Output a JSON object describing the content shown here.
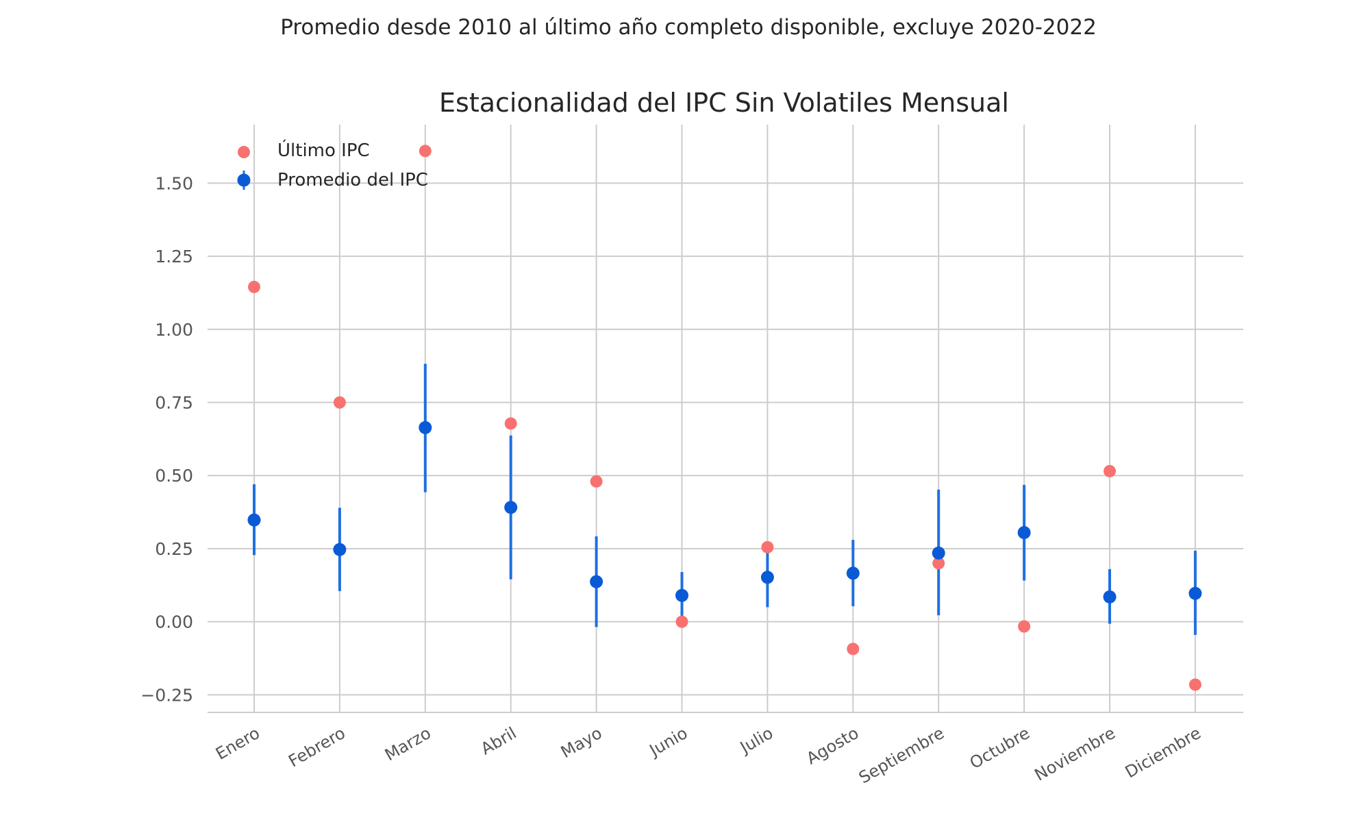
{
  "chart_data": {
    "type": "scatter",
    "suptitle": "Promedio desde 2010 al último año completo disponible, excluye 2020-2022",
    "title": "Estacionalidad del IPC Sin Volatiles Mensual",
    "xlabel": "",
    "ylabel": "",
    "categories": [
      "Enero",
      "Febrero",
      "Marzo",
      "Abril",
      "Mayo",
      "Junio",
      "Julio",
      "Agosto",
      "Septiembre",
      "Octubre",
      "Noviembre",
      "Diciembre"
    ],
    "ylim": [
      -0.31,
      1.7
    ],
    "yticks": [
      -0.25,
      0.0,
      0.25,
      0.5,
      0.75,
      1.0,
      1.25,
      1.5
    ],
    "ytick_labels": [
      "−0.25",
      "0.00",
      "0.25",
      "0.50",
      "0.75",
      "1.00",
      "1.25",
      "1.50"
    ],
    "grid": true,
    "legend_position": "top-left",
    "series": [
      {
        "name": "Último IPC",
        "kind": "points",
        "color": "#f87171",
        "values": [
          1.145,
          0.75,
          1.61,
          0.678,
          0.48,
          0.0,
          0.255,
          -0.093,
          0.2,
          -0.016,
          0.515,
          -0.215
        ]
      },
      {
        "name": "Promedio del IPC",
        "kind": "errorbar",
        "color": "#0a5ad6",
        "bar_color": "#1f6fe0",
        "values": [
          0.348,
          0.247,
          0.664,
          0.391,
          0.137,
          0.09,
          0.152,
          0.166,
          0.235,
          0.305,
          0.085,
          0.097
        ],
        "lower": [
          0.228,
          0.105,
          0.443,
          0.145,
          -0.018,
          0.01,
          0.05,
          0.053,
          0.022,
          0.141,
          -0.007,
          -0.045
        ],
        "upper": [
          0.47,
          0.39,
          0.882,
          0.637,
          0.292,
          0.17,
          0.254,
          0.28,
          0.452,
          0.468,
          0.18,
          0.243
        ]
      }
    ]
  }
}
